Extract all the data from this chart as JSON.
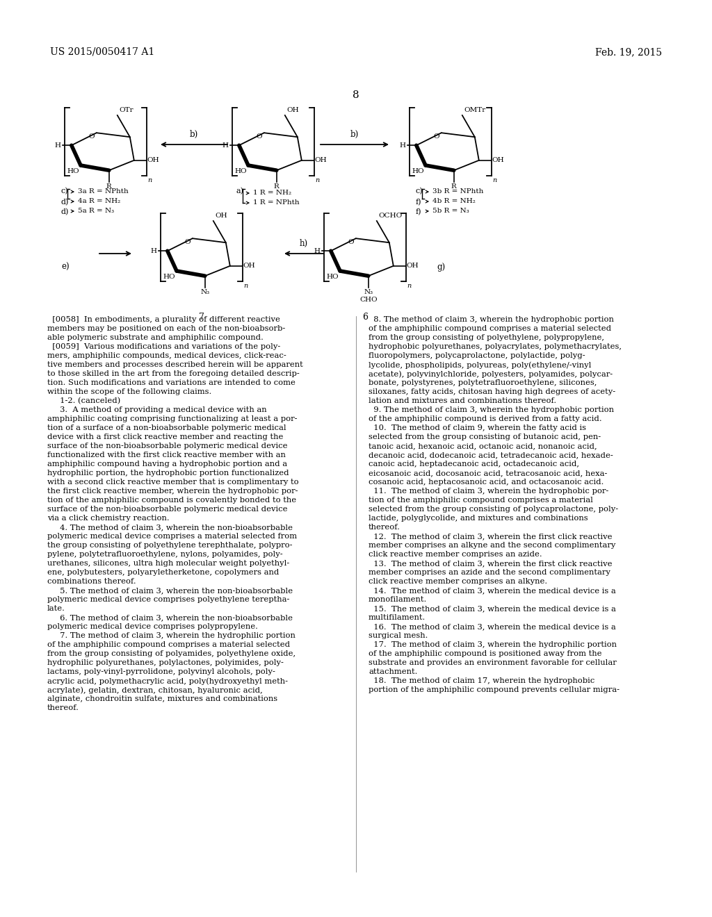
{
  "patent_number": "US 2015/0050417 A1",
  "date": "Feb. 19, 2015",
  "page_number": "8",
  "bg": "#ffffff",
  "left_text": "  [0058]  In embodiments, a plurality of different reactive\nmembers may be positioned on each of the non-bioabsorb-\nable polymeric substrate and amphiphilic compound.\n  [0059]  Various modifications and variations of the poly-\nmers, amphiphilic compounds, medical devices, click-reac-\ntive members and processes described herein will be apparent\nto those skilled in the art from the foregoing detailed descrip-\ntion. Such modifications and variations are intended to come\nwithin the scope of the following claims.\n     1-2. (canceled)\n     3.  A method of providing a medical device with an\namphiphilic coating comprising functionalizing at least a por-\ntion of a surface of a non-bioabsorbable polymeric medical\ndevice with a first click reactive member and reacting the\nsurface of the non-bioabsorbable polymeric medical device\nfunctionalized with the first click reactive member with an\namphiphilic compound having a hydrophobic portion and a\nhydrophilic portion, the hydrophobic portion functionalized\nwith a second click reactive member that is complimentary to\nthe first click reactive member, wherein the hydrophobic por-\ntion of the amphiphilic compound is covalently bonded to the\nsurface of the non-bioabsorbable polymeric medical device\nvia a click chemistry reaction.\n     4. The method of claim 3, wherein the non-bioabsorbable\npolymeric medical device comprises a material selected from\nthe group consisting of polyethylene terephthalate, polypro-\npylene, polytetrafluoroethylene, nylons, polyamides, poly-\nurethanes, silicones, ultra high molecular weight polyethyl-\nene, polybutesters, polyaryletherketone, copolymers and\ncombinations thereof.\n     5. The method of claim 3, wherein the non-bioabsorbable\npolymeric medical device comprises polyethylene tereptha-\nlate.\n     6. The method of claim 3, wherein the non-bioabsorbable\npolymeric medical device comprises polypropylene.\n     7. The method of claim 3, wherein the hydrophilic portion\nof the amphiphilic compound comprises a material selected\nfrom the group consisting of polyamides, polyethylene oxide,\nhydrophilic polyurethanes, polylactones, polyimides, poly-\nlactams, poly-vinyl-pyrrolidone, polyvinyl alcohols, poly-\nacrylic acid, polymethacrylic acid, poly(hydroxyethyl meth-\nacrylate), gelatin, dextran, chitosan, hyaluronic acid,\nalginate, chondroitin sulfate, mixtures and combinations\nthereof.",
  "right_text": "  8. The method of claim 3, wherein the hydrophobic portion\nof the amphiphilic compound comprises a material selected\nfrom the group consisting of polyethylene, polypropylene,\nhydrophobic polyurethanes, polyacrylates, polymethacrylates,\nfluoropolymers, polycaprolactone, polylactide, polyg-\nlycolide, phospholipids, polyureas, poly(ethylene/-vinyl\nacetate), polyvinylchloride, polyesters, polyamides, polycar-\nbonate, polystyrenes, polytetrafluoroethylene, silicones,\nsiloxanes, fatty acids, chitosan having high degrees of acety-\nlation and mixtures and combinations thereof.\n  9. The method of claim 3, wherein the hydrophobic portion\nof the amphiphilic compound is derived from a fatty acid.\n  10.  The method of claim 9, wherein the fatty acid is\nselected from the group consisting of butanoic acid, pen-\ntanoic acid, hexanoic acid, octanoic acid, nonanoic acid,\ndecanoic acid, dodecanoic acid, tetradecanoic acid, hexade-\ncanoic acid, heptadecanoic acid, octadecanoic acid,\neicosanoic acid, docosanoic acid, tetracosanoic acid, hexa-\ncosanoic acid, heptacosanoic acid, and octacosanoic acid.\n  11.  The method of claim 3, wherein the hydrophobic por-\ntion of the amphiphilic compound comprises a material\nselected from the group consisting of polycaprolactone, poly-\nlactide, polyglycolide, and mixtures and combinations\nthereof.\n  12.  The method of claim 3, wherein the first click reactive\nmember comprises an alkyne and the second complimentary\nclick reactive member comprises an azide.\n  13.  The method of claim 3, wherein the first click reactive\nmember comprises an azide and the second complimentary\nclick reactive member comprises an alkyne.\n  14.  The method of claim 3, wherein the medical device is a\nmonofilament.\n  15.  The method of claim 3, wherein the medical device is a\nmultifilament.\n  16.  The method of claim 3, wherein the medical device is a\nsurgical mesh.\n  17.  The method of claim 3, wherein the hydrophilic portion\nof the amphiphilic compound is positioned away from the\nsubstrate and provides an environment favorable for cellular\nattachment.\n  18.  The method of claim 17, wherein the hydrophobic\nportion of the amphiphilic compound prevents cellular migra-"
}
